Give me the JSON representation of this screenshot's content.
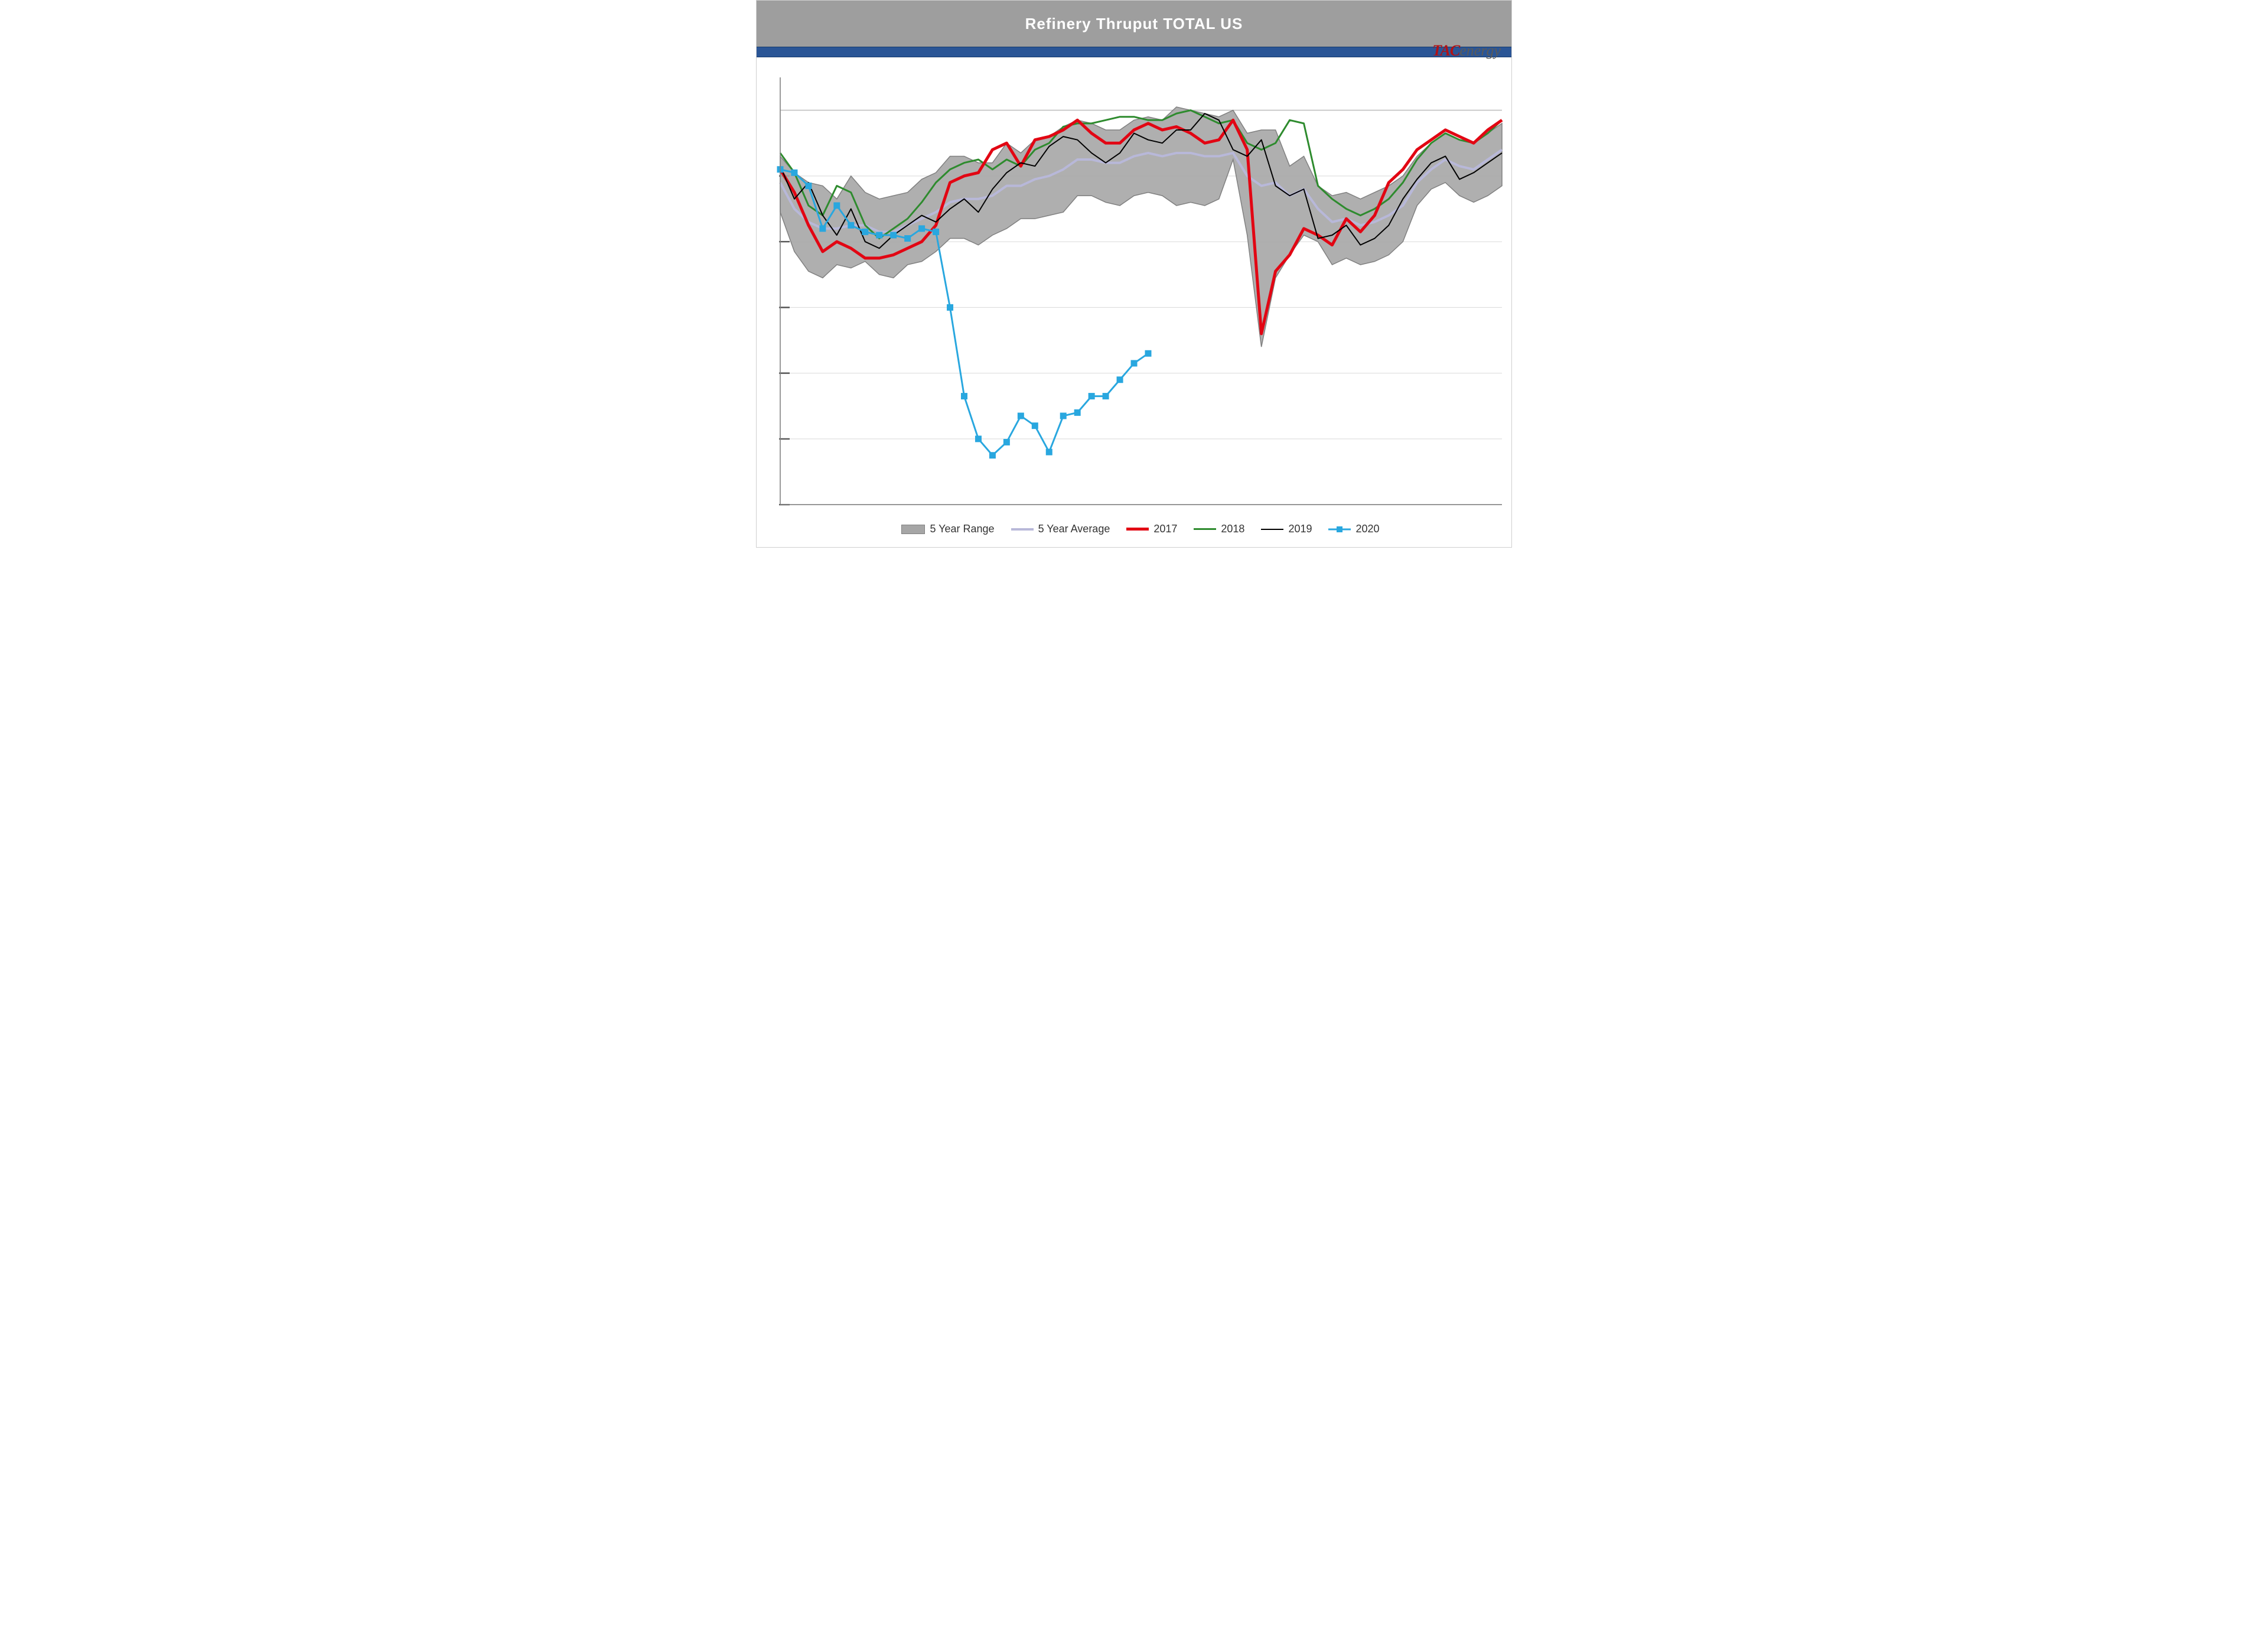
{
  "title": "Refinery Thruput TOTAL US",
  "brand": {
    "left": "TAC",
    "right": "energy"
  },
  "colors": {
    "titlebar_bg": "#9e9e9e",
    "title_text": "#ffffff",
    "blue_strip": "#2a5596",
    "frame_border": "#cfcfcf",
    "grid": "#d9d9d9",
    "grid_top": "#bfbfbf",
    "axis": "#808080",
    "range_fill": "#a6a6a6",
    "range_stroke": "#808080",
    "avg": "#b8b8d9",
    "y2017": "#e20613",
    "y2018": "#2e8b2e",
    "y2019": "#000000",
    "y2020": "#29a7df",
    "plot_bg": "#ffffff"
  },
  "y": {
    "min": 12000,
    "max": 18500,
    "grid_step": 1000,
    "top_emph_line": 18000,
    "tick_dash_levels": [
      12000,
      13000,
      14000,
      15000,
      16000,
      17000
    ]
  },
  "x": {
    "weeks": 52
  },
  "series": {
    "range_hi": [
      17300,
      17050,
      16900,
      16850,
      16650,
      17000,
      16750,
      16650,
      16700,
      16750,
      16950,
      17050,
      17300,
      17300,
      17200,
      17200,
      17500,
      17350,
      17550,
      17600,
      17750,
      17850,
      17800,
      17700,
      17700,
      17850,
      17900,
      17850,
      18050,
      18000,
      17950,
      17900,
      18000,
      17650,
      17700,
      17700,
      17150,
      17300,
      16850,
      16700,
      16750,
      16650,
      16750,
      16850,
      17000,
      17300,
      17500,
      17650,
      17550,
      17500,
      17650,
      17800
    ],
    "range_lo": [
      16450,
      15850,
      15550,
      15450,
      15650,
      15600,
      15700,
      15500,
      15450,
      15650,
      15700,
      15850,
      16050,
      16050,
      15950,
      16100,
      16200,
      16350,
      16350,
      16400,
      16450,
      16700,
      16700,
      16600,
      16550,
      16700,
      16750,
      16700,
      16550,
      16600,
      16550,
      16650,
      17250,
      16100,
      14400,
      15450,
      15800,
      16100,
      16000,
      15650,
      15750,
      15650,
      15700,
      15800,
      16000,
      16550,
      16800,
      16900,
      16700,
      16600,
      16700,
      16850
    ],
    "avg": [
      16900,
      16500,
      16300,
      16200,
      16200,
      16250,
      16250,
      16150,
      16150,
      16250,
      16350,
      16450,
      16600,
      16650,
      16650,
      16700,
      16850,
      16850,
      16950,
      17000,
      17100,
      17250,
      17250,
      17200,
      17200,
      17300,
      17350,
      17300,
      17350,
      17350,
      17300,
      17300,
      17350,
      17000,
      16850,
      16900,
      16700,
      16800,
      16500,
      16300,
      16350,
      16250,
      16300,
      16400,
      16550,
      16900,
      17100,
      17250,
      17150,
      17100,
      17250,
      17400
    ],
    "y2017": [
      17100,
      16750,
      16250,
      15850,
      16000,
      15900,
      15750,
      15750,
      15800,
      15900,
      16000,
      16250,
      16900,
      17000,
      17050,
      17400,
      17500,
      17150,
      17550,
      17600,
      17700,
      17850,
      17650,
      17500,
      17500,
      17700,
      17800,
      17700,
      17750,
      17650,
      17500,
      17550,
      17850,
      17400,
      14600,
      15550,
      15800,
      16200,
      16100,
      15950,
      16350,
      16150,
      16400,
      16900,
      17100,
      17400,
      17550,
      17700,
      17600,
      17500,
      17700,
      17850
    ],
    "y2018": [
      17350,
      17050,
      16550,
      16400,
      16850,
      16750,
      16250,
      16050,
      16200,
      16350,
      16600,
      16900,
      17100,
      17200,
      17250,
      17100,
      17250,
      17150,
      17400,
      17500,
      17750,
      17800,
      17800,
      17850,
      17900,
      17900,
      17850,
      17850,
      17950,
      18000,
      17900,
      17800,
      17850,
      17500,
      17400,
      17500,
      17850,
      17800,
      16850,
      16650,
      16500,
      16400,
      16500,
      16650,
      16900,
      17250,
      17500,
      17650,
      17550,
      17500,
      17650,
      17850
    ],
    "y2019": [
      17150,
      16650,
      16900,
      16400,
      16100,
      16500,
      16000,
      15900,
      16100,
      16250,
      16400,
      16300,
      16500,
      16650,
      16450,
      16800,
      17050,
      17200,
      17150,
      17450,
      17600,
      17550,
      17350,
      17200,
      17350,
      17650,
      17550,
      17500,
      17700,
      17700,
      17950,
      17850,
      17400,
      17300,
      17550,
      16850,
      16700,
      16800,
      16050,
      16100,
      16250,
      15950,
      16050,
      16250,
      16650,
      16950,
      17200,
      17300,
      16950,
      17050,
      17200,
      17350
    ],
    "y2020": [
      17100,
      17050,
      16850,
      16200,
      16550,
      16250,
      16150,
      16100,
      16100,
      16050,
      16200,
      16150,
      15000,
      13650,
      13000,
      12750,
      12950,
      13350,
      13200,
      12800,
      13350,
      13400,
      13650,
      13650,
      13900,
      14150,
      14300
    ]
  },
  "legend": [
    {
      "key": "range",
      "label": "5 Year Range",
      "type": "range"
    },
    {
      "key": "avg",
      "label": "5 Year Average",
      "type": "line"
    },
    {
      "key": "y2017",
      "label": "2017",
      "type": "line"
    },
    {
      "key": "y2018",
      "label": "2018",
      "type": "line"
    },
    {
      "key": "y2019",
      "label": "2019",
      "type": "line"
    },
    {
      "key": "y2020",
      "label": "2020",
      "type": "line-marker"
    }
  ],
  "line_widths": {
    "range_stroke": 1.5,
    "avg": 4,
    "y2017": 5,
    "y2018": 3,
    "y2019": 2,
    "y2020": 3
  },
  "marker": {
    "size": 10
  }
}
